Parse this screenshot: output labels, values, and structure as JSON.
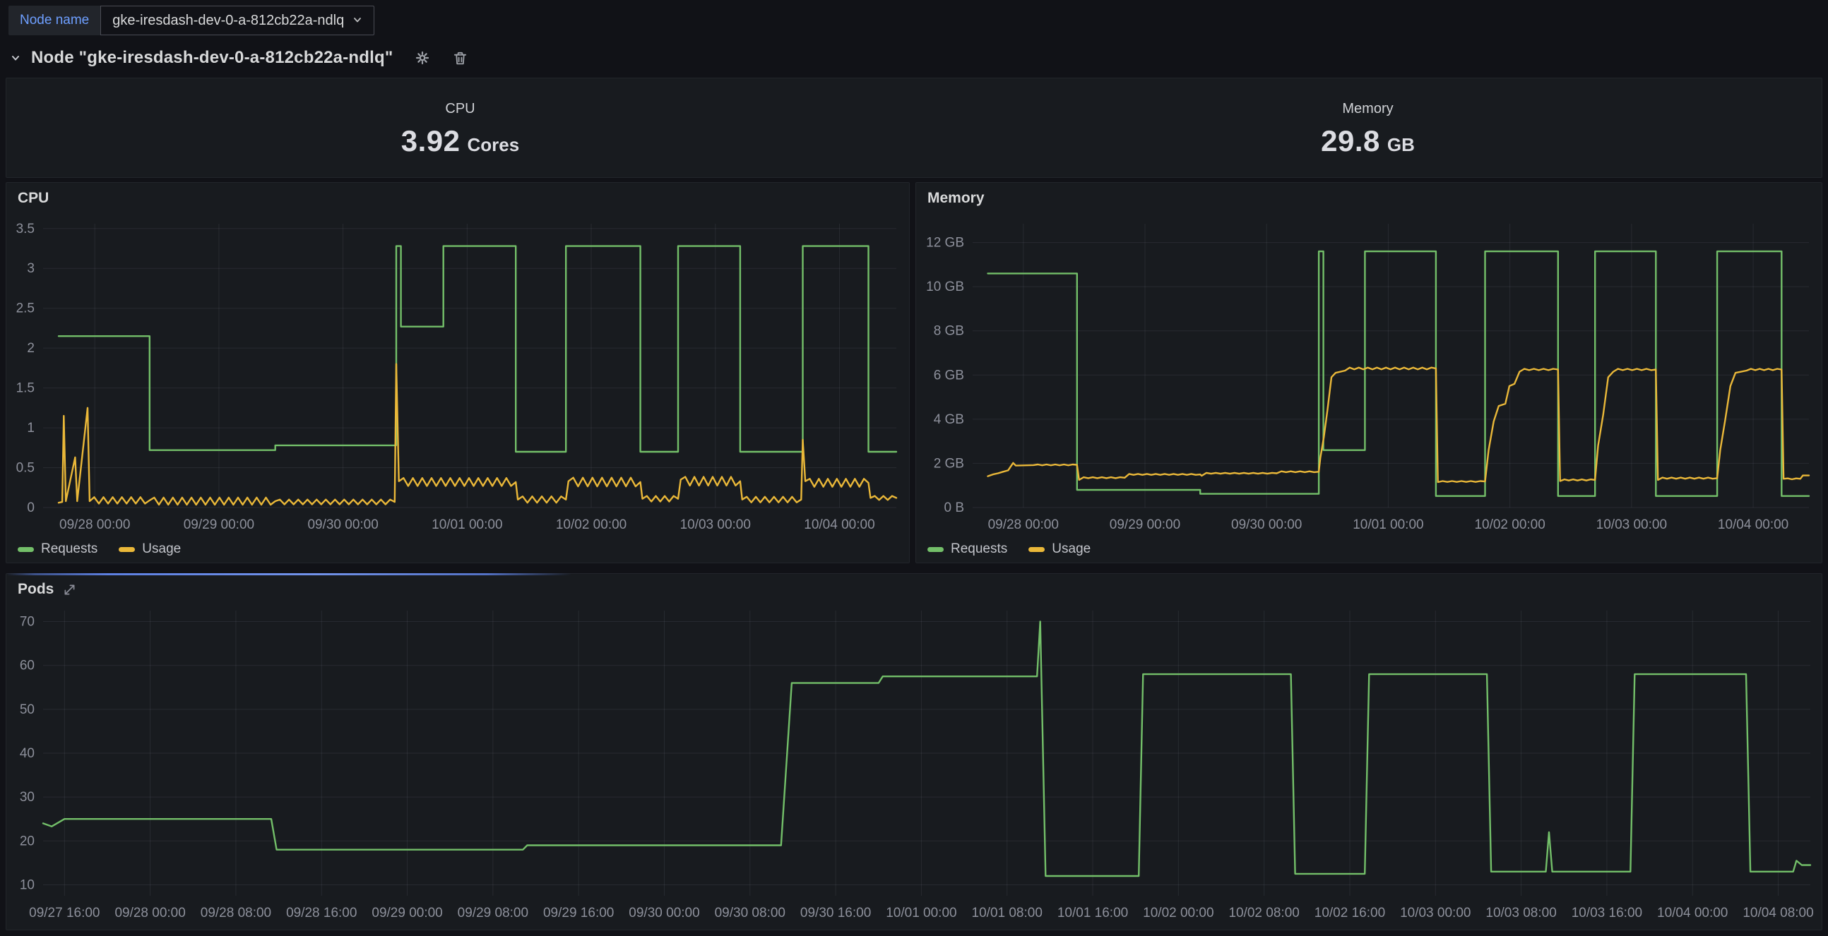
{
  "topbar": {
    "variable_label": "Node name",
    "variable_value": "gke-iresdash-dev-0-a-812cb22a-ndlq"
  },
  "row": {
    "title": "Node \"gke-iresdash-dev-0-a-812cb22a-ndlq\""
  },
  "stats": {
    "cpu": {
      "title": "CPU",
      "value": "3.92",
      "unit": "Cores"
    },
    "memory": {
      "title": "Memory",
      "value": "29.8",
      "unit": "GB"
    }
  },
  "colors": {
    "requests_green": "#73BF69",
    "usage_yellow": "#EAB839",
    "variable_label_blue": "#6e9fff",
    "loading_bar_blue": "#5d80e2",
    "panel_bg": "#181b1f",
    "page_bg": "#111217"
  },
  "chart_data": [
    {
      "type": "line",
      "title": "CPU",
      "xlabel": "",
      "ylabel": "",
      "xlim": [
        0,
        165
      ],
      "ylim": [
        0,
        3.56
      ],
      "grid": true,
      "legend_position": "bottom",
      "show_legend": true,
      "yticks": [
        {
          "v": 0,
          "label": "0"
        },
        {
          "v": 0.5,
          "label": "0.5"
        },
        {
          "v": 1,
          "label": "1"
        },
        {
          "v": 1.5,
          "label": "1.5"
        },
        {
          "v": 2,
          "label": "2"
        },
        {
          "v": 2.5,
          "label": "2.5"
        },
        {
          "v": 3,
          "label": "3"
        },
        {
          "v": 3.5,
          "label": "3.5"
        }
      ],
      "xticks": [
        {
          "t": 10,
          "label": "09/28 00:00"
        },
        {
          "t": 34,
          "label": "09/29 00:00"
        },
        {
          "t": 58,
          "label": "09/30 00:00"
        },
        {
          "t": 82,
          "label": "10/01 00:00"
        },
        {
          "t": 106,
          "label": "10/02 00:00"
        },
        {
          "t": 130,
          "label": "10/03 00:00"
        },
        {
          "t": 154,
          "label": "10/04 00:00"
        }
      ],
      "series": [
        {
          "name": "Requests",
          "color": "#73BF69",
          "unit": "cores",
          "points": [
            [
              3,
              2.15
            ],
            [
              20.6,
              2.15
            ],
            [
              20.6,
              0.72
            ],
            [
              44.9,
              0.72
            ],
            [
              44.9,
              0.78
            ],
            [
              68.3,
              0.78
            ],
            [
              68.3,
              3.28
            ],
            [
              69.2,
              3.28
            ],
            [
              69.2,
              2.27
            ],
            [
              77.4,
              2.27
            ],
            [
              77.4,
              3.28
            ],
            [
              91.4,
              3.28
            ],
            [
              91.4,
              0.7
            ],
            [
              101.1,
              0.7
            ],
            [
              101.1,
              3.28
            ],
            [
              115.5,
              3.28
            ],
            [
              115.5,
              0.7
            ],
            [
              122.8,
              0.7
            ],
            [
              122.8,
              3.28
            ],
            [
              134.8,
              3.28
            ],
            [
              134.8,
              0.7
            ],
            [
              146.9,
              0.7
            ],
            [
              146.9,
              3.28
            ],
            [
              159.6,
              3.28
            ],
            [
              159.6,
              0.7
            ],
            [
              165,
              0.7
            ]
          ]
        },
        {
          "name": "Usage",
          "color": "#EAB839",
          "unit": "cores",
          "points": [
            [
              3,
              0.06
            ],
            [
              3.7,
              0.07
            ],
            [
              4,
              1.15
            ],
            [
              4.4,
              0.08
            ],
            [
              6.2,
              0.63
            ],
            [
              6.6,
              0.08
            ],
            [
              8.6,
              1.25
            ],
            [
              9,
              0.08
            ],
            [
              20.6,
              0.09,
              0.04
            ],
            [
              44.9,
              0.08,
              0.045
            ],
            [
              68,
              0.07,
              0.03
            ],
            [
              68.3,
              1.8
            ],
            [
              68.8,
              0.33
            ],
            [
              91.4,
              0.32,
              0.05
            ],
            [
              91.8,
              0.1
            ],
            [
              101.1,
              0.1,
              0.04
            ],
            [
              101.6,
              0.33
            ],
            [
              115.5,
              0.32,
              0.055
            ],
            [
              115.9,
              0.11
            ],
            [
              122.8,
              0.11,
              0.035
            ],
            [
              123.3,
              0.35
            ],
            [
              134.8,
              0.33,
              0.055
            ],
            [
              135.2,
              0.1
            ],
            [
              146.6,
              0.1,
              0.035
            ],
            [
              146.9,
              0.85
            ],
            [
              147.4,
              0.33
            ],
            [
              159.6,
              0.31,
              0.05
            ],
            [
              160,
              0.12
            ],
            [
              165,
              0.12,
              0.025
            ]
          ]
        }
      ]
    },
    {
      "type": "line",
      "title": "Memory",
      "xlabel": "",
      "ylabel": "",
      "xlim": [
        0,
        165
      ],
      "ylim": [
        0,
        12.85
      ],
      "grid": true,
      "legend_position": "bottom",
      "show_legend": true,
      "yticks": [
        {
          "v": 0,
          "label": "0 B"
        },
        {
          "v": 2,
          "label": "2 GB"
        },
        {
          "v": 4,
          "label": "4 GB"
        },
        {
          "v": 6,
          "label": "6 GB"
        },
        {
          "v": 8,
          "label": "8 GB"
        },
        {
          "v": 10,
          "label": "10 GB"
        },
        {
          "v": 12,
          "label": "12 GB"
        }
      ],
      "xticks": [
        {
          "t": 10,
          "label": "09/28 00:00"
        },
        {
          "t": 34,
          "label": "09/29 00:00"
        },
        {
          "t": 58,
          "label": "09/30 00:00"
        },
        {
          "t": 82,
          "label": "10/01 00:00"
        },
        {
          "t": 106,
          "label": "10/02 00:00"
        },
        {
          "t": 130,
          "label": "10/03 00:00"
        },
        {
          "t": 154,
          "label": "10/04 00:00"
        }
      ],
      "series": [
        {
          "name": "Requests",
          "color": "#73BF69",
          "unit": "GB",
          "points": [
            [
              3,
              10.6
            ],
            [
              20.6,
              10.6
            ],
            [
              20.6,
              0.8
            ],
            [
              44.9,
              0.8
            ],
            [
              44.9,
              0.62
            ],
            [
              68.3,
              0.62
            ],
            [
              68.3,
              11.6
            ],
            [
              69.2,
              11.6
            ],
            [
              69.2,
              2.6
            ],
            [
              77.4,
              2.6
            ],
            [
              77.4,
              11.6
            ],
            [
              91.4,
              11.6
            ],
            [
              91.4,
              0.52
            ],
            [
              101.1,
              0.52
            ],
            [
              101.1,
              11.6
            ],
            [
              115.5,
              11.6
            ],
            [
              115.5,
              0.52
            ],
            [
              122.8,
              0.52
            ],
            [
              122.8,
              11.6
            ],
            [
              134.8,
              11.6
            ],
            [
              134.8,
              0.52
            ],
            [
              146.9,
              0.52
            ],
            [
              146.9,
              11.6
            ],
            [
              159.6,
              11.6
            ],
            [
              159.6,
              0.52
            ],
            [
              165,
              0.52
            ]
          ]
        },
        {
          "name": "Usage",
          "color": "#EAB839",
          "unit": "GB",
          "points": [
            [
              3,
              1.42
            ],
            [
              4,
              1.5
            ],
            [
              5,
              1.55
            ],
            [
              6,
              1.62
            ],
            [
              7,
              1.68
            ],
            [
              7.5,
              1.85
            ],
            [
              8,
              2.02
            ],
            [
              8.5,
              1.9
            ],
            [
              12,
              1.92
            ],
            [
              20.6,
              1.93,
              0.02
            ],
            [
              21,
              1.25
            ],
            [
              30,
              1.35,
              0.02
            ],
            [
              44.9,
              1.5,
              0.02
            ],
            [
              45.2,
              1.44
            ],
            [
              60,
              1.55,
              0.02
            ],
            [
              68.3,
              1.62,
              0.02
            ],
            [
              68.6,
              2.25
            ],
            [
              69.3,
              3.2
            ],
            [
              70,
              4.4
            ],
            [
              70.8,
              5.9
            ],
            [
              71.6,
              6.1
            ],
            [
              73.5,
              6.2
            ],
            [
              91.4,
              6.3,
              0.04
            ],
            [
              91.8,
              1.15
            ],
            [
              101.1,
              1.18,
              0.02
            ],
            [
              101.8,
              2.6
            ],
            [
              102.8,
              3.9
            ],
            [
              103.8,
              4.6
            ],
            [
              105.1,
              4.7
            ],
            [
              105.9,
              5.5
            ],
            [
              106.9,
              5.6
            ],
            [
              107.9,
              6.15
            ],
            [
              115.5,
              6.25,
              0.03
            ],
            [
              115.9,
              1.2
            ],
            [
              122.8,
              1.25,
              0.025
            ],
            [
              123.4,
              2.8
            ],
            [
              124.4,
              4.2
            ],
            [
              125.4,
              5.9
            ],
            [
              126.4,
              6.15
            ],
            [
              134.8,
              6.25,
              0.03
            ],
            [
              135.2,
              1.25
            ],
            [
              146.9,
              1.33,
              0.025
            ],
            [
              147.5,
              2.6
            ],
            [
              148.5,
              4.0
            ],
            [
              149.5,
              5.5
            ],
            [
              150.5,
              6.1
            ],
            [
              152.7,
              6.2
            ],
            [
              159.6,
              6.25,
              0.03
            ],
            [
              160,
              1.3
            ],
            [
              163.3,
              1.3,
              0.02
            ],
            [
              163.8,
              1.45
            ],
            [
              165,
              1.45
            ]
          ]
        }
      ]
    },
    {
      "type": "line",
      "title": "Pods",
      "xlabel": "",
      "ylabel": "",
      "xlim": [
        0,
        165
      ],
      "ylim": [
        7.5,
        72.5
      ],
      "grid": true,
      "legend_position": "none",
      "show_legend": false,
      "yticks": [
        {
          "v": 10,
          "label": "10"
        },
        {
          "v": 20,
          "label": "20"
        },
        {
          "v": 30,
          "label": "30"
        },
        {
          "v": 40,
          "label": "40"
        },
        {
          "v": 50,
          "label": "50"
        },
        {
          "v": 60,
          "label": "60"
        },
        {
          "v": 70,
          "label": "70"
        }
      ],
      "xticks": [
        {
          "t": 2,
          "label": "09/27 16:00"
        },
        {
          "t": 10,
          "label": "09/28 00:00"
        },
        {
          "t": 18,
          "label": "09/28 08:00"
        },
        {
          "t": 26,
          "label": "09/28 16:00"
        },
        {
          "t": 34,
          "label": "09/29 00:00"
        },
        {
          "t": 42,
          "label": "09/29 08:00"
        },
        {
          "t": 50,
          "label": "09/29 16:00"
        },
        {
          "t": 58,
          "label": "09/30 00:00"
        },
        {
          "t": 66,
          "label": "09/30 08:00"
        },
        {
          "t": 74,
          "label": "09/30 16:00"
        },
        {
          "t": 82,
          "label": "10/01 00:00"
        },
        {
          "t": 90,
          "label": "10/01 08:00"
        },
        {
          "t": 98,
          "label": "10/01 16:00"
        },
        {
          "t": 106,
          "label": "10/02 00:00"
        },
        {
          "t": 114,
          "label": "10/02 08:00"
        },
        {
          "t": 122,
          "label": "10/02 16:00"
        },
        {
          "t": 130,
          "label": "10/03 00:00"
        },
        {
          "t": 138,
          "label": "10/03 08:00"
        },
        {
          "t": 146,
          "label": "10/03 16:00"
        },
        {
          "t": 154,
          "label": "10/04 00:00"
        },
        {
          "t": 162,
          "label": "10/04 08:00"
        }
      ],
      "series": [
        {
          "name": "Pods",
          "color": "#73BF69",
          "unit": "pods",
          "points": [
            [
              0,
              24
            ],
            [
              0.8,
              23.3
            ],
            [
              2,
              25
            ],
            [
              21.3,
              25
            ],
            [
              21.8,
              18
            ],
            [
              44.8,
              18
            ],
            [
              45.2,
              19
            ],
            [
              68.9,
              19
            ],
            [
              69.9,
              56
            ],
            [
              78,
              56
            ],
            [
              78.4,
              57.5
            ],
            [
              92.8,
              57.5
            ],
            [
              93.1,
              70
            ],
            [
              93.6,
              12
            ],
            [
              102.3,
              12
            ],
            [
              102.7,
              58
            ],
            [
              116.5,
              58
            ],
            [
              116.9,
              12.5
            ],
            [
              123.4,
              12.5
            ],
            [
              123.8,
              58
            ],
            [
              134.8,
              58
            ],
            [
              135.2,
              13
            ],
            [
              140.3,
              13
            ],
            [
              140.6,
              22
            ],
            [
              140.9,
              13
            ],
            [
              148.2,
              13
            ],
            [
              148.6,
              58
            ],
            [
              159,
              58
            ],
            [
              159.4,
              13
            ],
            [
              163.4,
              13
            ],
            [
              163.7,
              15.5
            ],
            [
              164.2,
              14.5
            ],
            [
              165,
              14.5
            ]
          ]
        }
      ]
    }
  ]
}
